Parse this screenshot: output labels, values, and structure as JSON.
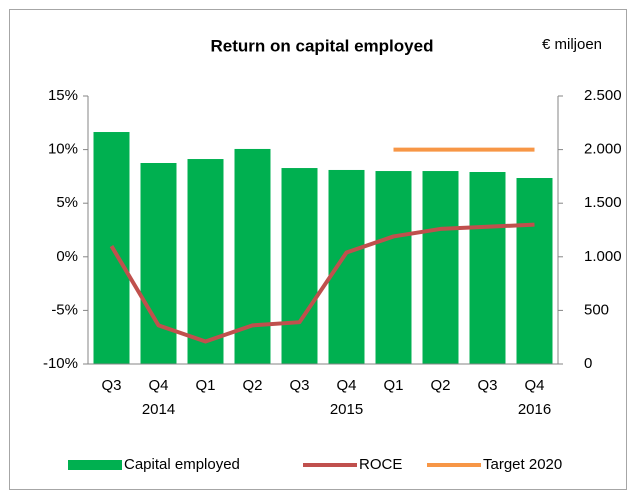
{
  "chart_data": {
    "type": "bar_line",
    "title": "Return on capital employed",
    "annotation": "€ miljoen",
    "categories": [
      "Q3",
      "Q4",
      "Q1",
      "Q2",
      "Q3",
      "Q4",
      "Q1",
      "Q2",
      "Q3",
      "Q4"
    ],
    "year_labels": [
      null,
      "2014",
      null,
      null,
      null,
      "2015",
      null,
      null,
      null,
      "2016"
    ],
    "series": [
      {
        "name": "Capital employed",
        "type": "bar",
        "axis": "y2",
        "color": "#00b050",
        "values": [
          2164,
          1875,
          1912,
          2006,
          1828,
          1810,
          1800,
          1800,
          1791,
          1735
        ]
      },
      {
        "name": "ROCE",
        "type": "line",
        "axis": "y",
        "color": "#c0504d",
        "values": [
          1.0,
          -6.4,
          -7.9,
          -6.4,
          -6.1,
          0.4,
          1.9,
          2.6,
          2.8,
          3.0
        ]
      },
      {
        "name": "Target 2020",
        "type": "line",
        "axis": "y",
        "color": "#f79646",
        "values": [
          null,
          null,
          null,
          null,
          null,
          null,
          10,
          10,
          10,
          10
        ]
      }
    ],
    "ylim": [
      -10,
      15
    ],
    "yticks": [
      {
        "value": -10,
        "label": "-10%"
      },
      {
        "value": -5,
        "label": "-5%"
      },
      {
        "value": 0,
        "label": "0%"
      },
      {
        "value": 5,
        "label": "5%"
      },
      {
        "value": 10,
        "label": "10%"
      },
      {
        "value": 15,
        "label": "15%"
      }
    ],
    "y2lim": [
      0,
      2500
    ],
    "y2ticks": [
      0,
      500,
      {
        "value": 1000,
        "label": "1.000"
      },
      {
        "value": 1500,
        "label": "1.500"
      },
      {
        "value": 2000,
        "label": "2.000"
      },
      {
        "value": 2500,
        "label": "2.500"
      }
    ],
    "legend": "bottom"
  }
}
